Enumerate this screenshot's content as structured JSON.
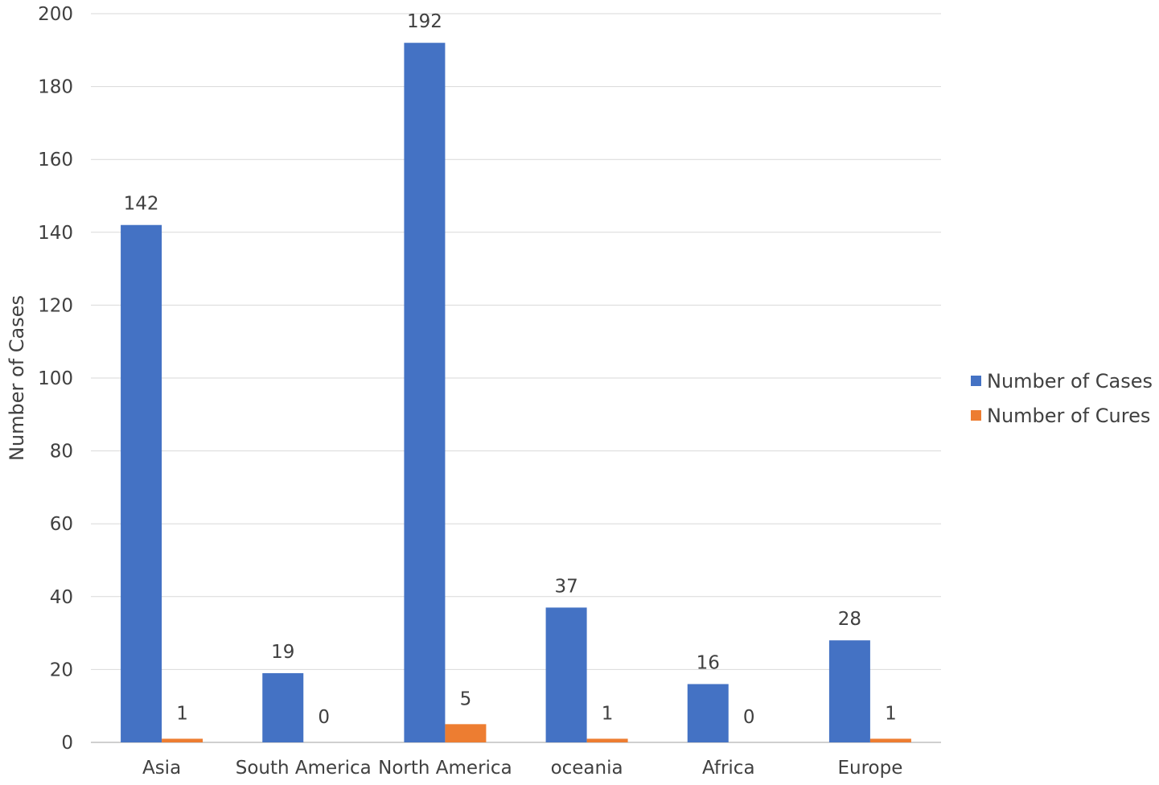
{
  "chart_data": {
    "type": "bar",
    "title": "",
    "xlabel": "",
    "ylabel": "Number of Cases",
    "ylim": [
      0,
      200
    ],
    "yticks": [
      0,
      20,
      40,
      60,
      80,
      100,
      120,
      140,
      160,
      180,
      200
    ],
    "grid": true,
    "legend_position": "right",
    "categories": [
      "Asia",
      "South America",
      "North America",
      "oceania",
      "Africa",
      "Europe"
    ],
    "series": [
      {
        "name": "Number of Cases",
        "color": "#4472C4",
        "values": [
          142,
          19,
          192,
          37,
          16,
          28
        ]
      },
      {
        "name": "Number of Cures",
        "color": "#ED7D31",
        "values": [
          1,
          0,
          5,
          1,
          0,
          1
        ]
      }
    ]
  }
}
